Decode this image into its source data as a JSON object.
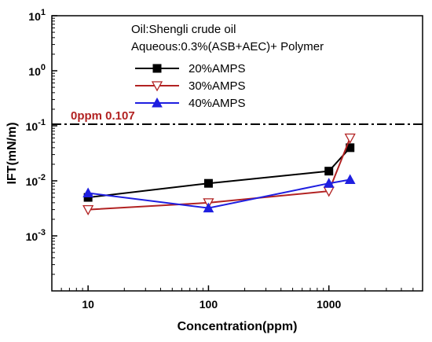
{
  "chart_data": {
    "type": "line",
    "xlabel": "Concentration(ppm)",
    "ylabel": "IFT(mN/m)",
    "x_scale": "log",
    "y_scale": "log",
    "xlim": [
      5,
      6000
    ],
    "ylim": [
      0.0001,
      10
    ],
    "x_ticks": [
      {
        "value": 10,
        "label": "10"
      },
      {
        "value": 100,
        "label": "100"
      },
      {
        "value": 1000,
        "label": "1000"
      }
    ],
    "y_ticks": [
      {
        "value": 0.001,
        "base": "10",
        "exp": "-3"
      },
      {
        "value": 0.01,
        "base": "10",
        "exp": "-2"
      },
      {
        "value": 0.1,
        "base": "10",
        "exp": "-1"
      },
      {
        "value": 1,
        "base": "10",
        "exp": "0"
      },
      {
        "value": 10,
        "base": "10",
        "exp": "1"
      }
    ],
    "annotations": [
      {
        "text": "Oil:Shengli crude oil"
      },
      {
        "text": "Aqueous:0.3%(ASB+AEC)+ Polymer"
      }
    ],
    "reference_line": {
      "y": 0.107,
      "label": "0ppm 0.107",
      "color": "#000000",
      "label_color": "#b22222",
      "style": "dash-dot"
    },
    "series": [
      {
        "name": "20%AMPS",
        "color": "#000000",
        "marker": "square",
        "x": [
          10,
          100,
          1000,
          1500
        ],
        "y": [
          0.005,
          0.009,
          0.015,
          0.04
        ]
      },
      {
        "name": "30%AMPS",
        "color": "#b22222",
        "marker": "triangle-down-open",
        "x": [
          10,
          100,
          1000,
          1500
        ],
        "y": [
          0.003,
          0.004,
          0.0065,
          0.06
        ]
      },
      {
        "name": "40%AMPS",
        "color": "#1f1fe0",
        "marker": "triangle-up",
        "x": [
          10,
          100,
          1000,
          1500
        ],
        "y": [
          0.006,
          0.0032,
          0.009,
          0.0105
        ]
      }
    ],
    "legend_position": "top-right",
    "grid": false
  }
}
